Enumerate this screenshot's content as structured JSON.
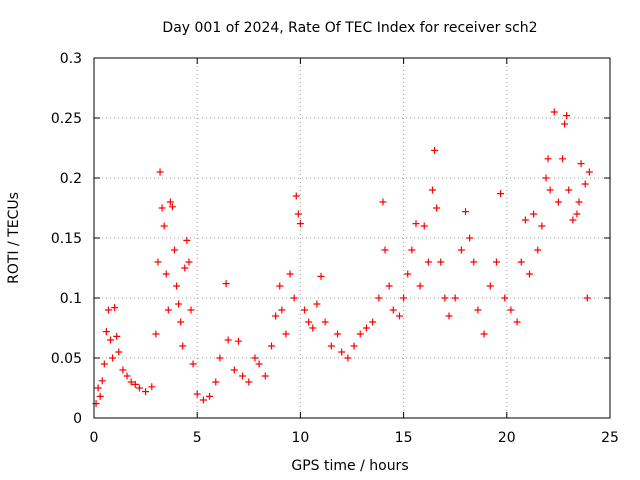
{
  "chart_data": {
    "type": "scatter",
    "title": "Day 001 of 2024, Rate Of TEC Index for receiver sch2",
    "xlabel": "GPS time / hours",
    "ylabel": "ROTI / TECUs",
    "xlim": [
      0,
      25
    ],
    "ylim": [
      0,
      0.3
    ],
    "xticks": [
      0,
      5,
      10,
      15,
      20,
      25
    ],
    "xtick_labels": [
      "0",
      "5",
      "10",
      "15",
      "20",
      "25"
    ],
    "yticks": [
      0,
      0.05,
      0.1,
      0.15,
      0.2,
      0.25,
      0.3
    ],
    "ytick_labels": [
      "0",
      "0.05",
      "0.1",
      "0.15",
      "0.2",
      "0.25",
      "0.3"
    ],
    "grid": true,
    "marker": "plus",
    "color": "#ff0000",
    "series": [
      {
        "points": [
          [
            0.1,
            0.012
          ],
          [
            0.2,
            0.025
          ],
          [
            0.3,
            0.018
          ],
          [
            0.4,
            0.031
          ],
          [
            0.5,
            0.045
          ],
          [
            0.6,
            0.072
          ],
          [
            0.7,
            0.09
          ],
          [
            0.8,
            0.065
          ],
          [
            0.9,
            0.05
          ],
          [
            1.0,
            0.092
          ],
          [
            1.1,
            0.068
          ],
          [
            1.2,
            0.055
          ],
          [
            1.4,
            0.04
          ],
          [
            1.6,
            0.035
          ],
          [
            1.8,
            0.03
          ],
          [
            2.0,
            0.028
          ],
          [
            2.2,
            0.025
          ],
          [
            2.5,
            0.022
          ],
          [
            2.8,
            0.026
          ],
          [
            3.0,
            0.07
          ],
          [
            3.1,
            0.13
          ],
          [
            3.2,
            0.205
          ],
          [
            3.3,
            0.175
          ],
          [
            3.4,
            0.16
          ],
          [
            3.5,
            0.12
          ],
          [
            3.6,
            0.09
          ],
          [
            3.7,
            0.18
          ],
          [
            3.8,
            0.176
          ],
          [
            3.9,
            0.14
          ],
          [
            4.0,
            0.11
          ],
          [
            4.1,
            0.095
          ],
          [
            4.2,
            0.08
          ],
          [
            4.3,
            0.06
          ],
          [
            4.4,
            0.125
          ],
          [
            4.5,
            0.148
          ],
          [
            4.6,
            0.13
          ],
          [
            4.7,
            0.09
          ],
          [
            4.8,
            0.045
          ],
          [
            5.0,
            0.02
          ],
          [
            5.3,
            0.015
          ],
          [
            5.6,
            0.018
          ],
          [
            5.9,
            0.03
          ],
          [
            6.1,
            0.05
          ],
          [
            6.4,
            0.112
          ],
          [
            6.5,
            0.065
          ],
          [
            6.8,
            0.04
          ],
          [
            7.0,
            0.064
          ],
          [
            7.2,
            0.035
          ],
          [
            7.5,
            0.03
          ],
          [
            7.8,
            0.05
          ],
          [
            8.0,
            0.045
          ],
          [
            8.3,
            0.035
          ],
          [
            8.6,
            0.06
          ],
          [
            8.8,
            0.085
          ],
          [
            9.0,
            0.11
          ],
          [
            9.1,
            0.09
          ],
          [
            9.3,
            0.07
          ],
          [
            9.5,
            0.12
          ],
          [
            9.7,
            0.1
          ],
          [
            9.8,
            0.185
          ],
          [
            9.9,
            0.17
          ],
          [
            10.0,
            0.162
          ],
          [
            10.2,
            0.09
          ],
          [
            10.4,
            0.08
          ],
          [
            10.6,
            0.075
          ],
          [
            10.8,
            0.095
          ],
          [
            11.0,
            0.118
          ],
          [
            11.2,
            0.08
          ],
          [
            11.5,
            0.06
          ],
          [
            11.8,
            0.07
          ],
          [
            12.0,
            0.055
          ],
          [
            12.3,
            0.05
          ],
          [
            12.6,
            0.06
          ],
          [
            12.9,
            0.07
          ],
          [
            13.2,
            0.075
          ],
          [
            13.5,
            0.08
          ],
          [
            13.8,
            0.1
          ],
          [
            14.0,
            0.18
          ],
          [
            14.1,
            0.14
          ],
          [
            14.3,
            0.11
          ],
          [
            14.5,
            0.09
          ],
          [
            14.8,
            0.085
          ],
          [
            15.0,
            0.1
          ],
          [
            15.2,
            0.12
          ],
          [
            15.4,
            0.14
          ],
          [
            15.6,
            0.162
          ],
          [
            15.8,
            0.11
          ],
          [
            16.0,
            0.16
          ],
          [
            16.2,
            0.13
          ],
          [
            16.4,
            0.19
          ],
          [
            16.5,
            0.223
          ],
          [
            16.6,
            0.175
          ],
          [
            16.8,
            0.13
          ],
          [
            17.0,
            0.1
          ],
          [
            17.2,
            0.085
          ],
          [
            17.5,
            0.1
          ],
          [
            17.8,
            0.14
          ],
          [
            18.0,
            0.172
          ],
          [
            18.2,
            0.15
          ],
          [
            18.4,
            0.13
          ],
          [
            18.6,
            0.09
          ],
          [
            18.9,
            0.07
          ],
          [
            19.2,
            0.11
          ],
          [
            19.5,
            0.13
          ],
          [
            19.7,
            0.187
          ],
          [
            19.9,
            0.1
          ],
          [
            20.2,
            0.09
          ],
          [
            20.5,
            0.08
          ],
          [
            20.7,
            0.13
          ],
          [
            20.9,
            0.165
          ],
          [
            21.1,
            0.12
          ],
          [
            21.3,
            0.17
          ],
          [
            21.5,
            0.14
          ],
          [
            21.7,
            0.16
          ],
          [
            21.9,
            0.2
          ],
          [
            22.0,
            0.216
          ],
          [
            22.1,
            0.19
          ],
          [
            22.3,
            0.255
          ],
          [
            22.5,
            0.18
          ],
          [
            22.7,
            0.216
          ],
          [
            22.8,
            0.245
          ],
          [
            22.9,
            0.252
          ],
          [
            23.0,
            0.19
          ],
          [
            23.2,
            0.165
          ],
          [
            23.4,
            0.17
          ],
          [
            23.5,
            0.18
          ],
          [
            23.6,
            0.212
          ],
          [
            23.8,
            0.195
          ],
          [
            23.9,
            0.1
          ],
          [
            24.0,
            0.205
          ]
        ]
      }
    ]
  }
}
